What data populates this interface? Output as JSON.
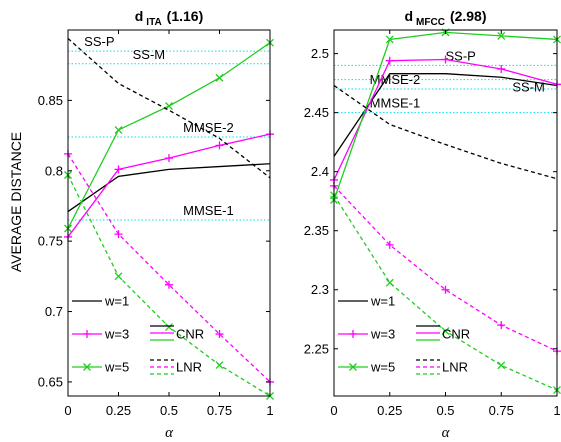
{
  "colors": {
    "black": "#000000",
    "magenta": "#ff00ff",
    "green": "#22cc22",
    "cyan": "#00e0f0"
  },
  "figure": {
    "ylabel": "AVERAGE DISTANCE",
    "legend": {
      "w1": "w=1",
      "w3": "w=3",
      "w5": "w=5",
      "cnr": "CNR",
      "lnr": "LNR"
    }
  },
  "chart_data": [
    {
      "type": "line",
      "title_main": "d",
      "title_sub": "ITA",
      "title_value": "(1.16)",
      "xlabel": "α",
      "ylabel": "AVERAGE DISTANCE",
      "xlim": [
        0,
        1
      ],
      "ylim": [
        0.64,
        0.9
      ],
      "x": [
        0,
        0.25,
        0.5,
        0.75,
        1
      ],
      "xticks": [
        "0",
        "0.25",
        "0.5",
        "0.75",
        "1"
      ],
      "yticks": [
        "0.65",
        "0.7",
        "0.75",
        "0.8",
        "0.85"
      ],
      "ytick_values": [
        0.65,
        0.7,
        0.75,
        0.8,
        0.85
      ],
      "series": [
        {
          "name": "w=1",
          "group": "CNR",
          "color": "black",
          "dash": false,
          "marker": "none",
          "values": [
            0.771,
            0.796,
            0.801,
            0.803,
            0.805
          ]
        },
        {
          "name": "w=3",
          "group": "CNR",
          "color": "magenta",
          "dash": false,
          "marker": "plus",
          "values": [
            0.753,
            0.801,
            0.809,
            0.818,
            0.826
          ]
        },
        {
          "name": "w=5",
          "group": "CNR",
          "color": "green",
          "dash": false,
          "marker": "x",
          "values": [
            0.759,
            0.829,
            0.846,
            0.866,
            0.891
          ]
        },
        {
          "name": "w=1",
          "group": "LNR",
          "color": "black",
          "dash": true,
          "marker": "none",
          "values": [
            0.894,
            0.862,
            0.843,
            0.823,
            0.795
          ]
        },
        {
          "name": "w=3",
          "group": "LNR",
          "color": "magenta",
          "dash": true,
          "marker": "plus",
          "values": [
            0.812,
            0.755,
            0.719,
            0.684,
            0.65
          ]
        },
        {
          "name": "w=5",
          "group": "LNR",
          "color": "green",
          "dash": true,
          "marker": "x",
          "values": [
            0.797,
            0.725,
            0.689,
            0.662,
            0.64
          ]
        }
      ],
      "reference_lines": [
        {
          "label": "SS-P",
          "value": 0.885,
          "label_x": 0.08,
          "label_dy": -5
        },
        {
          "label": "SS-M",
          "value": 0.876,
          "label_x": 0.32,
          "label_dy": -5
        },
        {
          "label": "MMSE-2",
          "value": 0.824,
          "label_x": 0.57,
          "label_dy": -5
        },
        {
          "label": "MMSE-1",
          "value": 0.765,
          "label_x": 0.57,
          "label_dy": -5
        }
      ]
    },
    {
      "type": "line",
      "title_main": "d",
      "title_sub": "MFCC",
      "title_value": "(2.98)",
      "xlabel": "α",
      "ylabel": "",
      "xlim": [
        0,
        1
      ],
      "ylim": [
        2.21,
        2.52
      ],
      "x": [
        0,
        0.25,
        0.5,
        0.75,
        1
      ],
      "xticks": [
        "0",
        "0.25",
        "0.5",
        "0.75",
        "1"
      ],
      "yticks": [
        "2.25",
        "2.3",
        "2.35",
        "2.4",
        "2.45",
        "2.5"
      ],
      "ytick_values": [
        2.25,
        2.3,
        2.35,
        2.4,
        2.45,
        2.5
      ],
      "series": [
        {
          "name": "w=1",
          "group": "CNR",
          "color": "black",
          "dash": false,
          "marker": "none",
          "values": [
            2.413,
            2.483,
            2.483,
            2.48,
            2.473
          ]
        },
        {
          "name": "w=3",
          "group": "CNR",
          "color": "magenta",
          "dash": false,
          "marker": "plus",
          "values": [
            2.393,
            2.494,
            2.495,
            2.487,
            2.474
          ]
        },
        {
          "name": "w=5",
          "group": "CNR",
          "color": "green",
          "dash": false,
          "marker": "x",
          "values": [
            2.376,
            2.512,
            2.518,
            2.515,
            2.512
          ]
        },
        {
          "name": "w=1",
          "group": "LNR",
          "color": "black",
          "dash": true,
          "marker": "none",
          "values": [
            2.473,
            2.44,
            2.423,
            2.407,
            2.394
          ]
        },
        {
          "name": "w=3",
          "group": "LNR",
          "color": "magenta",
          "dash": true,
          "marker": "plus",
          "values": [
            2.388,
            2.338,
            2.3,
            2.27,
            2.248
          ]
        },
        {
          "name": "w=5",
          "group": "LNR",
          "color": "green",
          "dash": true,
          "marker": "x",
          "values": [
            2.38,
            2.306,
            2.265,
            2.236,
            2.215
          ]
        }
      ],
      "reference_lines": [
        {
          "label": "SS-P",
          "value": 2.49,
          "label_x": 0.5,
          "label_dy": -5
        },
        {
          "label": "SS-M",
          "value": 2.478,
          "label_x": 0.8,
          "label_dy": 12
        },
        {
          "label": "MMSE-2",
          "value": 2.47,
          "label_x": 0.16,
          "label_dy": -5
        },
        {
          "label": "MMSE-1",
          "value": 2.45,
          "label_x": 0.16,
          "label_dy": -5
        }
      ]
    }
  ]
}
